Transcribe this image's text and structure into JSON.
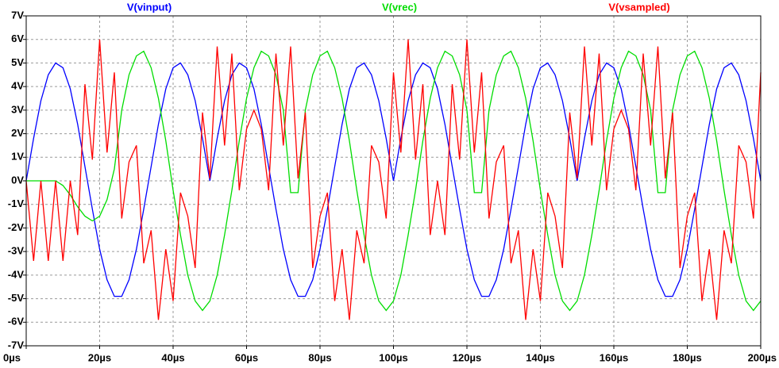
{
  "chart_data": {
    "type": "line",
    "x": [
      0,
      2,
      4,
      6,
      8,
      10,
      12,
      14,
      16,
      18,
      20,
      22,
      24,
      26,
      28,
      30,
      32,
      34,
      36,
      38,
      40,
      42,
      44,
      46,
      48,
      50,
      52,
      54,
      56,
      58,
      60,
      62,
      64,
      66,
      68,
      70,
      72,
      74,
      76,
      78,
      80,
      82,
      84,
      86,
      88,
      90,
      92,
      94,
      96,
      98,
      100,
      102,
      104,
      106,
      108,
      110,
      112,
      114,
      116,
      118,
      120,
      122,
      124,
      126,
      128,
      130,
      132,
      134,
      136,
      138,
      140,
      142,
      144,
      146,
      148,
      150,
      152,
      154,
      156,
      158,
      160,
      162,
      164,
      166,
      168,
      170,
      172,
      174,
      176,
      178,
      180,
      182,
      184,
      186,
      188,
      190,
      192,
      194,
      196,
      198,
      200
    ],
    "series": [
      {
        "name": "V(vinput)",
        "color": "#0000ff",
        "values": [
          0,
          1.8,
          3.4,
          4.5,
          5,
          4.8,
          3.9,
          2.4,
          0.6,
          -1.2,
          -2.9,
          -4.2,
          -4.9,
          -4.9,
          -4.2,
          -2.9,
          -1.2,
          0.6,
          2.4,
          3.9,
          4.8,
          5,
          4.5,
          3.4,
          1.8,
          0,
          1.8,
          3.4,
          4.5,
          5,
          4.8,
          3.9,
          2.4,
          0.6,
          -1.2,
          -2.9,
          -4.2,
          -4.9,
          -4.9,
          -4.2,
          -2.9,
          -1.2,
          0.6,
          2.4,
          3.9,
          4.8,
          5,
          4.5,
          3.4,
          1.8,
          0,
          1.8,
          3.4,
          4.5,
          5,
          4.8,
          3.9,
          2.4,
          0.6,
          -1.2,
          -2.9,
          -4.2,
          -4.9,
          -4.9,
          -4.2,
          -2.9,
          -1.2,
          0.6,
          2.4,
          3.9,
          4.8,
          5,
          4.5,
          3.4,
          1.8,
          0,
          1.8,
          3.4,
          4.5,
          5,
          4.8,
          3.9,
          2.4,
          0.6,
          -1.2,
          -2.9,
          -4.2,
          -4.9,
          -4.9,
          -4.2,
          -2.9,
          -1.2,
          0.6,
          2.4,
          3.9,
          4.8,
          5,
          4.5,
          3.4,
          1.8,
          0
        ]
      },
      {
        "name": "V(vrec)",
        "color": "#00dd00",
        "values": [
          0,
          0,
          0,
          0,
          0,
          -0.2,
          -0.6,
          -1.1,
          -1.5,
          -1.7,
          -1.5,
          -0.8,
          0.5,
          3,
          4.5,
          5.3,
          5.5,
          4.8,
          3.5,
          1.7,
          -0.4,
          -2.3,
          -4,
          -5.1,
          -5.5,
          -5.1,
          -4,
          -2.3,
          -0.4,
          1.7,
          3.5,
          4.8,
          5.5,
          5.3,
          4.5,
          3,
          -0.5,
          -0.5,
          3,
          4.5,
          5.3,
          5.5,
          4.8,
          3.5,
          1.7,
          -0.4,
          -2.3,
          -4,
          -5.1,
          -5.5,
          -5.1,
          -4,
          -2.3,
          -0.4,
          1.7,
          3.5,
          4.8,
          5.5,
          5.3,
          4.5,
          3,
          -0.5,
          -0.5,
          3,
          4.5,
          5.3,
          5.5,
          4.8,
          3.5,
          1.7,
          -0.4,
          -2.3,
          -4,
          -5.1,
          -5.5,
          -5.1,
          -4,
          -2.3,
          -0.4,
          1.7,
          3.5,
          4.8,
          5.5,
          5.3,
          4.5,
          3,
          -0.5,
          -0.5,
          3,
          4.5,
          5.3,
          5.5,
          4.8,
          3.5,
          1.7,
          -0.4,
          -2.3,
          -4,
          -5.1,
          -5.5,
          -5.1
        ]
      },
      {
        "name": "V(vsampled)",
        "color": "#ff0000",
        "values": [
          0,
          -3.4,
          0,
          -3.4,
          0,
          -3.4,
          0,
          -2.3,
          4.1,
          0.9,
          6,
          1.2,
          4.6,
          -1.6,
          0.8,
          1.5,
          -3.5,
          -2.1,
          -5.9,
          -2.9,
          -5.1,
          -0.5,
          -1.5,
          -3.7,
          2.9,
          0.1,
          5.7,
          1.5,
          5.4,
          -0.4,
          2.2,
          3,
          2.2,
          -0.4,
          5.4,
          1.5,
          5.7,
          0.1,
          2.9,
          -3.7,
          -1.5,
          -0.5,
          -5.1,
          -2.9,
          -5.9,
          -2.1,
          -3.5,
          1.5,
          0.8,
          -1.6,
          4.6,
          1.2,
          6,
          0.9,
          4.1,
          -2.3,
          0,
          -2.3,
          4.1,
          0.9,
          6,
          1.2,
          4.6,
          -1.6,
          0.8,
          1.5,
          -3.5,
          -2.1,
          -5.9,
          -2.9,
          -5.1,
          -0.5,
          -1.5,
          -3.7,
          2.9,
          0.1,
          5.7,
          1.5,
          5.4,
          -0.4,
          2.2,
          3,
          2.2,
          -0.4,
          5.4,
          1.5,
          5.7,
          0.1,
          2.9,
          -3.7,
          -1.5,
          -0.5,
          -5.1,
          -2.9,
          -5.9,
          -2.1,
          -3.5,
          1.5,
          0.8,
          -1.6,
          4.6
        ]
      }
    ],
    "xlim": [
      0,
      200
    ],
    "xticks": [
      {
        "value": 0,
        "label": "0µs"
      },
      {
        "value": 20,
        "label": "20µs"
      },
      {
        "value": 40,
        "label": "40µs"
      },
      {
        "value": 60,
        "label": "60µs"
      },
      {
        "value": 80,
        "label": "80µs"
      },
      {
        "value": 100,
        "label": "100µs"
      },
      {
        "value": 120,
        "label": "120µs"
      },
      {
        "value": 140,
        "label": "140µs"
      },
      {
        "value": 160,
        "label": "160µs"
      },
      {
        "value": 180,
        "label": "180µs"
      },
      {
        "value": 200,
        "label": "200µs"
      }
    ],
    "ylim": [
      -7,
      7
    ],
    "yticks": [
      {
        "value": -7,
        "label": "-7V"
      },
      {
        "value": -6,
        "label": "-6V"
      },
      {
        "value": -5,
        "label": "-5V"
      },
      {
        "value": -4,
        "label": "-4V"
      },
      {
        "value": -3,
        "label": "-3V"
      },
      {
        "value": -2,
        "label": "-2V"
      },
      {
        "value": -1,
        "label": "-1V"
      },
      {
        "value": 0,
        "label": "0V"
      },
      {
        "value": 1,
        "label": "1V"
      },
      {
        "value": 2,
        "label": "2V"
      },
      {
        "value": 3,
        "label": "3V"
      },
      {
        "value": 4,
        "label": "4V"
      },
      {
        "value": 5,
        "label": "5V"
      },
      {
        "value": 6,
        "label": "6V"
      },
      {
        "value": 7,
        "label": "7V"
      }
    ],
    "grid": true
  }
}
